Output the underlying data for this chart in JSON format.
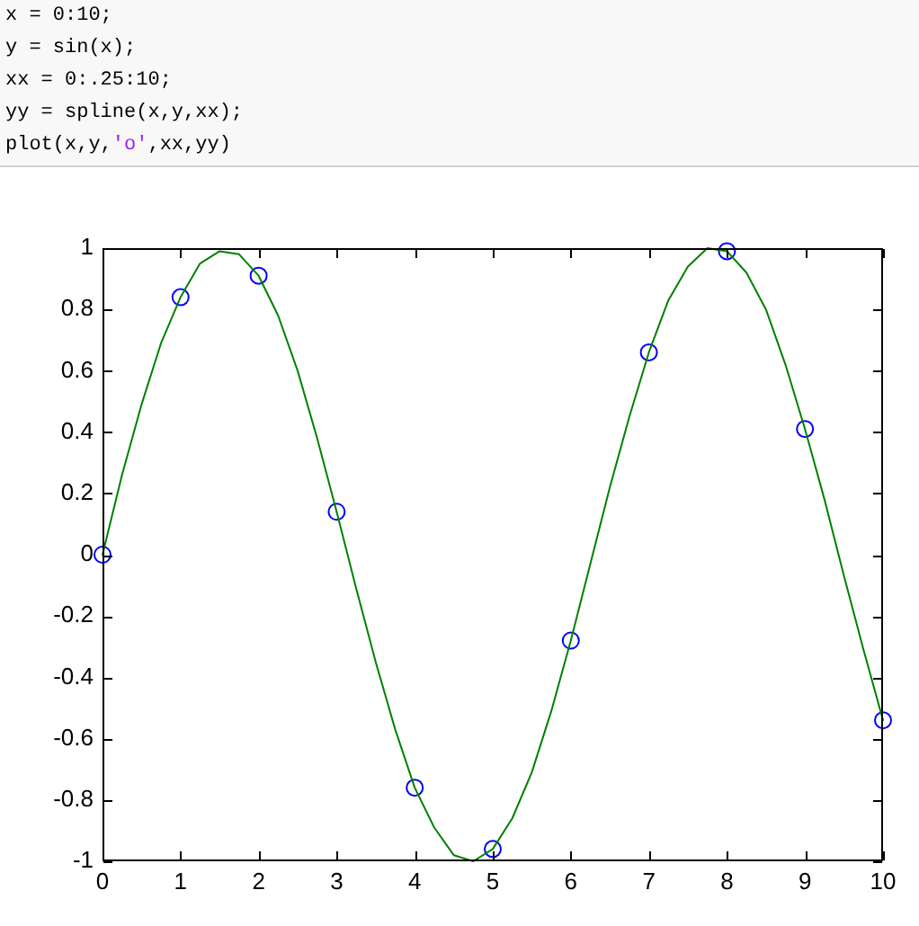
{
  "chart_data": {
    "type": "line",
    "annotations": [
      "x = 0:10;",
      "y = sin(x);",
      "xx = 0:.25:10;",
      "yy = spline(x,y,xx);",
      "plot(x,y,'o',xx,yy)"
    ],
    "series": [
      {
        "type": "scatter",
        "color": "#0000ff",
        "marker": "circle",
        "x": [
          0,
          1,
          2,
          3,
          4,
          5,
          6,
          7,
          8,
          9,
          10
        ],
        "values": [
          0,
          0.84,
          0.91,
          0.14,
          -0.76,
          -0.96,
          -0.28,
          0.66,
          0.99,
          0.41,
          -0.54
        ]
      },
      {
        "type": "line",
        "color": "#008000",
        "marker": "none",
        "line_style": "solid",
        "x": [
          0,
          0.25,
          0.5,
          0.75,
          1,
          1.25,
          1.5,
          1.75,
          2,
          2.25,
          2.5,
          2.75,
          3,
          3.25,
          3.5,
          3.75,
          4,
          4.25,
          4.5,
          4.75,
          5,
          5.25,
          5.5,
          5.75,
          6,
          6.25,
          6.5,
          6.75,
          7,
          7.25,
          7.5,
          7.75,
          8,
          8.25,
          8.5,
          8.75,
          9,
          9.25,
          9.5,
          9.75,
          10
        ],
        "values": [
          0,
          0.26,
          0.49,
          0.69,
          0.84,
          0.95,
          0.99,
          0.98,
          0.91,
          0.78,
          0.6,
          0.38,
          0.14,
          -0.11,
          -0.35,
          -0.57,
          -0.76,
          -0.89,
          -0.98,
          -1,
          -0.96,
          -0.86,
          -0.71,
          -0.51,
          -0.28,
          -0.03,
          0.22,
          0.45,
          0.66,
          0.83,
          0.94,
          1,
          0.99,
          0.92,
          0.8,
          0.62,
          0.41,
          0.18,
          -0.07,
          -0.31,
          -0.54
        ]
      }
    ],
    "xlim": [
      0,
      10
    ],
    "xticks": [
      0,
      1,
      2,
      3,
      4,
      5,
      6,
      7,
      8,
      9,
      10
    ],
    "ylim": [
      -1,
      1
    ],
    "yticks": [
      -1,
      -0.8,
      -0.6,
      -0.4,
      -0.2,
      0,
      0.2,
      0.4,
      0.6,
      0.8,
      1
    ],
    "grid": false,
    "legend": false
  }
}
